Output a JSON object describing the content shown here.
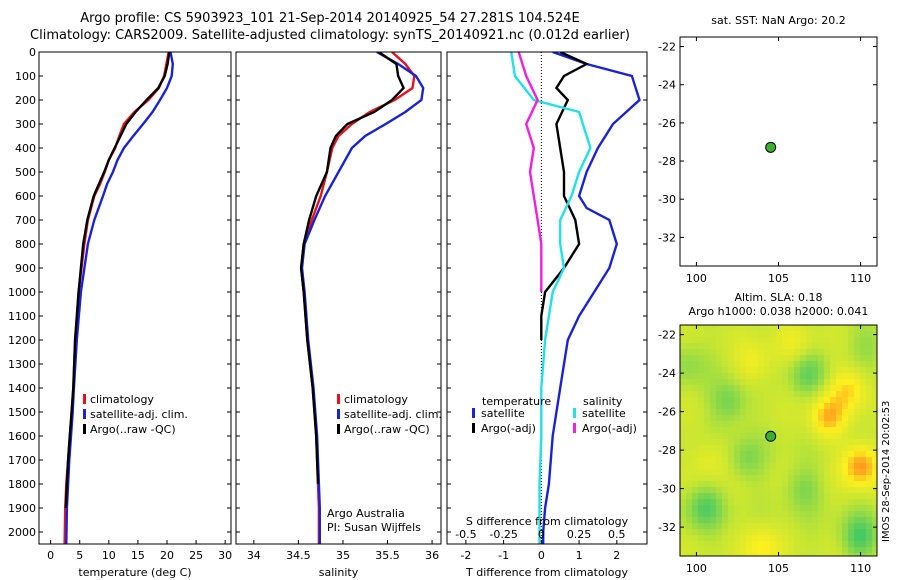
{
  "header": {
    "line1": "Argo profile: CS 5903923_101 21-Sep-2014 20140925_54 27.281S 104.524E",
    "line2": "Climatology: CARS2009. Satellite-adjusted climatology: synTS_20140921.nc (0.012d earlier)"
  },
  "colors": {
    "climatology": "#e8121b",
    "satellite": "#1a22d8",
    "argo": "#000000",
    "sal_satellite": "#20e0e8",
    "sal_argo": "#f020e0",
    "dot": "#3ab030"
  },
  "chart_data": [
    {
      "type": "line",
      "title": "",
      "xlabel": "temperature (deg C)",
      "ylabel": "",
      "xlim": [
        -2,
        31
      ],
      "ylim": [
        2050,
        0
      ],
      "xticks": [
        0,
        5,
        10,
        15,
        20,
        25,
        30
      ],
      "yticks": [
        0,
        100,
        200,
        300,
        400,
        500,
        600,
        700,
        800,
        900,
        1000,
        1100,
        1200,
        1300,
        1400,
        1500,
        1600,
        1700,
        1800,
        1900,
        2000
      ],
      "y_tick_labels": [
        "0",
        "100",
        "200",
        "300",
        "400",
        "500",
        "600",
        "700",
        "800",
        "900",
        "1000",
        "1100",
        "1200",
        "1300",
        "1400",
        "1500",
        "1600",
        "1700",
        "1800",
        "1900",
        "2000"
      ],
      "legend": [
        "climatology",
        "satellite-adj. clim.",
        "Argo(..raw -QC)"
      ],
      "series": [
        {
          "name": "climatology",
          "color": "#e8121b",
          "x": [
            20.3,
            19.9,
            19.5,
            18.6,
            16.8,
            14.4,
            12.6,
            11.8,
            11.1,
            10.0,
            9.3,
            8.5,
            7.5,
            6.4,
            5.8,
            5.3,
            4.8,
            4.2,
            3.9,
            3.6,
            3.3,
            3.0,
            2.7,
            2.5,
            2.4
          ],
          "y": [
            0,
            50,
            100,
            150,
            200,
            250,
            300,
            350,
            400,
            450,
            500,
            550,
            600,
            700,
            800,
            900,
            1000,
            1200,
            1400,
            1500,
            1600,
            1700,
            1800,
            1900,
            2050
          ]
        },
        {
          "name": "satellite-adj. clim.",
          "color": "#1a22d8",
          "x": [
            20.6,
            21.0,
            20.8,
            20.0,
            18.8,
            17.5,
            15.9,
            14.2,
            12.6,
            11.5,
            10.7,
            9.7,
            9.0,
            7.5,
            6.4,
            5.8,
            5.2,
            4.5,
            4.0,
            3.8,
            3.5,
            3.2,
            3.0,
            2.8,
            2.7
          ],
          "y": [
            0,
            50,
            100,
            150,
            200,
            250,
            300,
            350,
            400,
            450,
            500,
            550,
            600,
            700,
            800,
            900,
            1000,
            1200,
            1400,
            1500,
            1600,
            1700,
            1800,
            1900,
            2050
          ]
        },
        {
          "name": "Argo(..raw -QC)",
          "color": "#000000",
          "x": [
            20.4,
            20.1,
            19.6,
            18.5,
            16.5,
            14.6,
            13.0,
            12.0,
            11.0,
            10.0,
            9.2,
            8.3,
            7.4,
            6.3,
            5.6,
            5.2,
            4.8,
            4.2,
            3.9,
            3.6,
            3.3,
            3.0,
            2.8,
            2.6
          ],
          "y": [
            0,
            50,
            100,
            150,
            200,
            250,
            300,
            350,
            400,
            450,
            500,
            550,
            600,
            700,
            800,
            900,
            1000,
            1200,
            1400,
            1500,
            1600,
            1700,
            1800,
            1900
          ]
        }
      ]
    },
    {
      "type": "line",
      "title": "",
      "xlabel": "salinity",
      "ylabel": "",
      "xlim": [
        33.8,
        36.1
      ],
      "ylim": [
        2050,
        0
      ],
      "xticks": [
        34,
        34.5,
        35,
        35.5,
        36
      ],
      "x_tick_labels": [
        "34",
        "34.5",
        "35",
        "35.5",
        "36"
      ],
      "legend": [
        "climatology",
        "satellite-adj. clim.",
        "Argo(..raw -QC)"
      ],
      "series": [
        {
          "name": "climatology",
          "color": "#e8121b",
          "x": [
            35.55,
            35.7,
            35.8,
            35.78,
            35.58,
            35.3,
            35.1,
            34.95,
            34.88,
            34.82,
            34.75,
            34.65,
            34.56,
            34.53,
            34.56,
            34.6,
            34.66,
            34.7,
            34.72,
            34.73,
            34.73
          ],
          "y": [
            0,
            50,
            100,
            150,
            200,
            250,
            300,
            350,
            400,
            500,
            600,
            700,
            800,
            900,
            1000,
            1200,
            1400,
            1600,
            1800,
            1900,
            2050
          ]
        },
        {
          "name": "satellite-adj. clim.",
          "color": "#1a22d8",
          "x": [
            35.38,
            35.62,
            35.82,
            35.9,
            35.88,
            35.7,
            35.48,
            35.25,
            35.1,
            34.95,
            34.8,
            34.68,
            34.57,
            34.54,
            34.57,
            34.61,
            34.67,
            34.71,
            34.73,
            34.74,
            34.74
          ],
          "y": [
            0,
            50,
            100,
            150,
            200,
            250,
            300,
            350,
            400,
            500,
            600,
            700,
            800,
            900,
            1000,
            1200,
            1400,
            1600,
            1800,
            1900,
            2050
          ]
        },
        {
          "name": "Argo(..raw -QC)",
          "color": "#000000",
          "x": [
            35.4,
            35.6,
            35.62,
            35.68,
            35.55,
            35.35,
            35.05,
            34.92,
            34.86,
            34.82,
            34.7,
            34.62,
            34.56,
            34.53,
            34.56,
            34.6,
            34.66,
            34.7,
            34.72
          ],
          "y": [
            0,
            50,
            100,
            150,
            200,
            250,
            300,
            350,
            400,
            500,
            600,
            700,
            800,
            900,
            1000,
            1200,
            1400,
            1600,
            1800
          ]
        }
      ],
      "annotations": [
        "Argo Australia",
        "PI: Susan Wijffels"
      ]
    },
    {
      "type": "line",
      "title": "",
      "xlabel": "T difference from climatology",
      "xlabel_top": "S difference from climatology",
      "xlim": [
        -2.5,
        2.8
      ],
      "ylim": [
        2050,
        0
      ],
      "xticks": [
        -2,
        -1,
        0,
        1,
        2
      ],
      "xticks_top": [
        -0.5,
        -0.25,
        0,
        0.25,
        0.5
      ],
      "x_tick_labels_top": [
        "-0.5",
        "-0.25",
        "0",
        "0.25",
        "0.5"
      ],
      "legend": [
        "temperature",
        "satellite",
        "Argo(-adj)",
        "salinity",
        "satellite",
        "Argo(-adj)"
      ],
      "series": [
        {
          "name": "satellite",
          "group": "temperature",
          "color": "#1a22d8",
          "x": [
            0.3,
            1.2,
            2.4,
            2.6,
            1.9,
            1.5,
            1.2,
            1.0,
            1.2,
            1.8,
            2.0,
            1.8,
            1.4,
            1.0,
            0.7,
            0.5,
            0.3,
            0.2,
            0.1,
            0.05,
            0.05
          ],
          "y": [
            0,
            50,
            100,
            200,
            300,
            400,
            500,
            600,
            650,
            700,
            800,
            900,
            1000,
            1100,
            1200,
            1400,
            1600,
            1800,
            1900,
            2000,
            2050
          ]
        },
        {
          "name": "Argo(-adj)",
          "group": "temperature",
          "color": "#000000",
          "x": [
            0.5,
            1.2,
            0.6,
            0.4,
            0.7,
            0.4,
            0.5,
            0.6,
            0.6,
            0.9,
            1.0,
            0.6,
            0.1,
            0.0,
            0.0
          ],
          "y": [
            0,
            50,
            100,
            150,
            200,
            300,
            400,
            500,
            600,
            700,
            800,
            900,
            1000,
            1100,
            1200
          ]
        },
        {
          "name": "satellite",
          "group": "salinity",
          "color": "#20e0e8",
          "x": [
            -0.8,
            -0.7,
            -0.2,
            1.0,
            1.3,
            1.0,
            0.8,
            0.5,
            0.5,
            0.6,
            0.3,
            0.1,
            0.0,
            0.0,
            -0.05,
            -0.05,
            -0.05
          ],
          "y": [
            0,
            100,
            200,
            250,
            400,
            500,
            600,
            700,
            800,
            900,
            1000,
            1200,
            1400,
            1600,
            1800,
            2000,
            2050
          ]
        },
        {
          "name": "Argo(-adj)",
          "group": "salinity",
          "color": "#f020e0",
          "x": [
            -0.6,
            -0.4,
            -0.1,
            -0.4,
            -0.2,
            -0.3,
            -0.2,
            -0.1,
            0.0,
            0.0,
            0.0
          ],
          "y": [
            0,
            100,
            200,
            300,
            400,
            500,
            600,
            700,
            800,
            900,
            1000
          ]
        }
      ]
    },
    {
      "type": "scatter",
      "title": "sat. SST: NaN Argo: 20.2",
      "xlim": [
        99,
        111
      ],
      "ylim": [
        -33.5,
        -21.5
      ],
      "xticks": [
        100,
        105,
        110
      ],
      "yticks": [
        -22,
        -24,
        -26,
        -28,
        -30,
        -32
      ],
      "x_tick_labels": [
        "100",
        "105",
        "110"
      ],
      "y_tick_labels": [
        "-22",
        "-24",
        "-26",
        "-28",
        "-30",
        "-32"
      ],
      "points": [
        {
          "x": 104.524,
          "y": -27.281
        }
      ]
    },
    {
      "type": "heatmap",
      "title": "Altim. SLA: 0.18",
      "subtitle": "Argo h1000: 0.038 h2000: 0.041",
      "xlim": [
        99,
        111
      ],
      "ylim": [
        -33.5,
        -21.5
      ],
      "xticks": [
        100,
        105,
        110
      ],
      "yticks": [
        -22,
        -24,
        -26,
        -28,
        -30,
        -32
      ],
      "x_tick_labels": [
        "100",
        "105",
        "110"
      ],
      "y_tick_labels": [
        "-22",
        "-24",
        "-26",
        "-28",
        "-30",
        "-32"
      ],
      "points": [
        {
          "x": 104.524,
          "y": -27.281
        }
      ],
      "hot_spots": [
        {
          "x": 109.3,
          "y": -24.8,
          "v": 0.6
        },
        {
          "x": 108.0,
          "y": -26.3,
          "v": 0.7
        },
        {
          "x": 110.0,
          "y": -28.8,
          "v": 0.9
        },
        {
          "x": 103.5,
          "y": -23.5,
          "v": 0.4
        },
        {
          "x": 101.0,
          "y": -28.5,
          "v": 0.3
        },
        {
          "x": 104.0,
          "y": -33.0,
          "v": 0.5
        },
        {
          "x": 106.0,
          "y": -22.5,
          "v": 0.3
        },
        {
          "x": 102.0,
          "y": -25.5,
          "v": -0.5
        },
        {
          "x": 106.8,
          "y": -24.0,
          "v": -0.5
        },
        {
          "x": 100.5,
          "y": -31.0,
          "v": -0.6
        },
        {
          "x": 110.0,
          "y": -32.5,
          "v": -0.7
        },
        {
          "x": 106.5,
          "y": -30.0,
          "v": -0.4
        },
        {
          "x": 103.0,
          "y": -28.5,
          "v": -0.4
        },
        {
          "x": 110.5,
          "y": -22.5,
          "v": -0.3
        },
        {
          "x": 99.5,
          "y": -23.5,
          "v": -0.3
        }
      ]
    }
  ],
  "footer": {
    "stamp": "IMOS 28-Sep-2014 20:02:53"
  }
}
